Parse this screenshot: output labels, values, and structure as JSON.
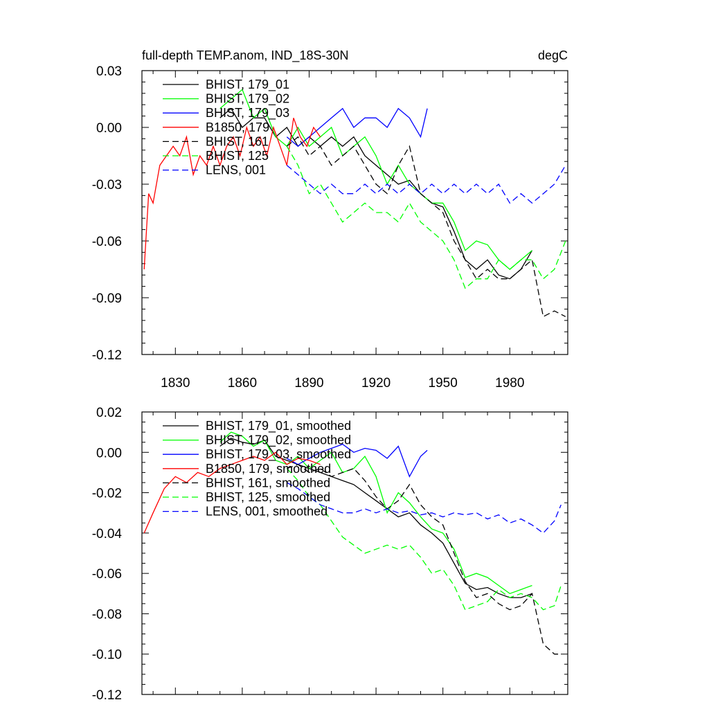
{
  "chart_data": [
    {
      "type": "line",
      "title": "full-depth TEMP.anom, IND_18S-30N",
      "units": "degC",
      "xlabel": "",
      "ylabel": "",
      "xlim": [
        1815,
        2006
      ],
      "ylim": [
        -0.12,
        0.03
      ],
      "xticks": [
        1830,
        1860,
        1890,
        1920,
        1950,
        1980
      ],
      "xtick_labels": [
        "1830",
        "1860",
        "1890",
        "1920",
        "1950",
        "1980"
      ],
      "yticks": [
        0.03,
        0.0,
        -0.03,
        -0.06,
        -0.09,
        -0.12
      ],
      "ytick_labels": [
        "0.03",
        "0.00",
        "-0.03",
        "-0.06",
        "-0.09",
        "-0.12"
      ],
      "legend_position": "top-left",
      "series": [
        {
          "name": "BHIST, 179_01",
          "color": "#000000",
          "dash": "solid",
          "x": [
            1850,
            1855,
            1860,
            1865,
            1870,
            1875,
            1880,
            1885,
            1890,
            1895,
            1900,
            1905,
            1910,
            1915,
            1920,
            1925,
            1930,
            1935,
            1940,
            1945,
            1950,
            1955,
            1960,
            1965,
            1970,
            1975,
            1980,
            1985,
            1990
          ],
          "y": [
            0.005,
            0.01,
            0.0,
            0.005,
            0.005,
            -0.005,
            0.0,
            -0.01,
            -0.005,
            -0.01,
            -0.005,
            -0.01,
            -0.005,
            -0.015,
            -0.02,
            -0.025,
            -0.03,
            -0.028,
            -0.035,
            -0.04,
            -0.042,
            -0.055,
            -0.07,
            -0.075,
            -0.07,
            -0.078,
            -0.08,
            -0.075,
            -0.065
          ]
        },
        {
          "name": "BHIST, 179_02",
          "color": "#00ff00",
          "dash": "solid",
          "x": [
            1850,
            1855,
            1860,
            1865,
            1870,
            1875,
            1880,
            1885,
            1890,
            1895,
            1900,
            1905,
            1910,
            1915,
            1920,
            1925,
            1930,
            1935,
            1940,
            1945,
            1950,
            1955,
            1960,
            1965,
            1970,
            1975,
            1980,
            1985,
            1990
          ],
          "y": [
            0.01,
            0.015,
            0.02,
            0.005,
            0.01,
            -0.005,
            -0.01,
            0.0,
            -0.01,
            -0.005,
            0.0,
            -0.015,
            -0.01,
            -0.005,
            -0.015,
            -0.03,
            -0.02,
            -0.03,
            -0.035,
            -0.04,
            -0.04,
            -0.05,
            -0.065,
            -0.06,
            -0.062,
            -0.07,
            -0.075,
            -0.07,
            -0.065
          ]
        },
        {
          "name": "BHIST, 179_03",
          "color": "#0000ff",
          "dash": "solid",
          "x": [
            1880,
            1885,
            1890,
            1895,
            1900,
            1905,
            1910,
            1915,
            1920,
            1925,
            1930,
            1935,
            1940,
            1943
          ],
          "y": [
            -0.005,
            -0.01,
            -0.005,
            0.0,
            0.005,
            0.01,
            0.0,
            0.005,
            0.005,
            0.0,
            0.01,
            0.005,
            -0.005,
            0.01
          ]
        },
        {
          "name": "B1850, 179",
          "color": "#ff0000",
          "dash": "solid",
          "x": [
            1816,
            1818,
            1820,
            1823,
            1826,
            1829,
            1832,
            1835,
            1838,
            1841,
            1844,
            1847,
            1850,
            1853,
            1856,
            1859,
            1862,
            1865,
            1868,
            1871,
            1874,
            1877,
            1880,
            1883,
            1886,
            1889,
            1892,
            1895
          ],
          "y": [
            -0.075,
            -0.035,
            -0.04,
            -0.02,
            -0.015,
            -0.01,
            -0.015,
            -0.005,
            -0.025,
            -0.015,
            -0.02,
            -0.01,
            -0.02,
            -0.01,
            -0.005,
            -0.015,
            0.0,
            -0.01,
            -0.005,
            -0.015,
            0.0,
            -0.01,
            -0.02,
            0.005,
            -0.005,
            -0.01,
            0.0,
            -0.005
          ]
        },
        {
          "name": "BHIST, 161",
          "color": "#000000",
          "dash": "dashed",
          "x": [
            1880,
            1885,
            1890,
            1895,
            1900,
            1905,
            1910,
            1915,
            1920,
            1925,
            1930,
            1935,
            1940,
            1945,
            1950,
            1955,
            1960,
            1965,
            1970,
            1975,
            1980,
            1985,
            1990,
            1995,
            2000,
            2005
          ],
          "y": [
            -0.01,
            -0.005,
            -0.015,
            -0.01,
            -0.02,
            -0.015,
            -0.01,
            -0.02,
            -0.03,
            -0.035,
            -0.02,
            -0.01,
            -0.035,
            -0.04,
            -0.045,
            -0.06,
            -0.07,
            -0.08,
            -0.075,
            -0.08,
            -0.08,
            -0.075,
            -0.07,
            -0.1,
            -0.097,
            -0.1
          ]
        },
        {
          "name": "BHIST, 125",
          "color": "#00ff00",
          "dash": "dashed",
          "x": [
            1880,
            1885,
            1890,
            1895,
            1900,
            1905,
            1910,
            1915,
            1920,
            1925,
            1930,
            1935,
            1940,
            1945,
            1950,
            1955,
            1960,
            1965,
            1970,
            1975,
            1980,
            1985,
            1990,
            1995,
            2000,
            2005
          ],
          "y": [
            -0.01,
            -0.02,
            -0.035,
            -0.03,
            -0.04,
            -0.05,
            -0.045,
            -0.04,
            -0.045,
            -0.045,
            -0.05,
            -0.04,
            -0.05,
            -0.055,
            -0.06,
            -0.07,
            -0.085,
            -0.08,
            -0.08,
            -0.07,
            -0.075,
            -0.07,
            -0.07,
            -0.08,
            -0.075,
            -0.06
          ]
        },
        {
          "name": "LENS, 001",
          "color": "#0000ff",
          "dash": "dashed",
          "x": [
            1880,
            1885,
            1890,
            1895,
            1900,
            1905,
            1910,
            1915,
            1920,
            1925,
            1930,
            1935,
            1940,
            1945,
            1950,
            1955,
            1960,
            1965,
            1970,
            1975,
            1980,
            1985,
            1990,
            1995,
            2000,
            2005
          ],
          "y": [
            -0.02,
            -0.025,
            -0.03,
            -0.035,
            -0.03,
            -0.035,
            -0.035,
            -0.03,
            -0.035,
            -0.03,
            -0.035,
            -0.03,
            -0.035,
            -0.03,
            -0.035,
            -0.03,
            -0.035,
            -0.03,
            -0.035,
            -0.03,
            -0.04,
            -0.035,
            -0.04,
            -0.035,
            -0.03,
            -0.02
          ]
        }
      ]
    },
    {
      "type": "line",
      "title": "",
      "xlabel": "",
      "ylabel": "",
      "xlim": [
        1815,
        2006
      ],
      "ylim": [
        -0.12,
        0.02
      ],
      "xticks": [
        1830,
        1860,
        1890,
        1920,
        1950,
        1980
      ],
      "yticks": [
        0.02,
        0.0,
        -0.02,
        -0.04,
        -0.06,
        -0.08,
        -0.1,
        -0.12
      ],
      "ytick_labels": [
        "0.02",
        "0.00",
        "-0.02",
        "-0.04",
        "-0.06",
        "-0.08",
        "-0.10",
        "-0.12"
      ],
      "legend_position": "top-left",
      "series": [
        {
          "name": "BHIST, 179_01, smoothed",
          "color": "#000000",
          "dash": "solid",
          "x": [
            1850,
            1855,
            1860,
            1865,
            1870,
            1875,
            1880,
            1885,
            1890,
            1895,
            1900,
            1905,
            1910,
            1915,
            1920,
            1925,
            1930,
            1935,
            1940,
            1945,
            1950,
            1955,
            1960,
            1965,
            1970,
            1975,
            1980,
            1985,
            1990
          ],
          "y": [
            0.003,
            0.007,
            0.005,
            0.004,
            0.006,
            -0.002,
            -0.004,
            -0.006,
            -0.008,
            -0.01,
            -0.012,
            -0.014,
            -0.016,
            -0.02,
            -0.024,
            -0.028,
            -0.032,
            -0.03,
            -0.036,
            -0.04,
            -0.045,
            -0.055,
            -0.065,
            -0.068,
            -0.067,
            -0.07,
            -0.072,
            -0.072,
            -0.07
          ]
        },
        {
          "name": "BHIST, 179_02, smoothed",
          "color": "#00ff00",
          "dash": "solid",
          "x": [
            1850,
            1855,
            1860,
            1865,
            1870,
            1875,
            1880,
            1885,
            1890,
            1895,
            1900,
            1905,
            1910,
            1915,
            1920,
            1925,
            1930,
            1935,
            1940,
            1945,
            1950,
            1955,
            1960,
            1965,
            1970,
            1975,
            1980,
            1985,
            1990
          ],
          "y": [
            0.005,
            0.01,
            0.008,
            0.003,
            0.006,
            -0.004,
            -0.006,
            -0.002,
            -0.008,
            -0.004,
            0.0,
            -0.01,
            -0.008,
            -0.002,
            -0.012,
            -0.03,
            -0.02,
            -0.025,
            -0.032,
            -0.038,
            -0.04,
            -0.048,
            -0.062,
            -0.06,
            -0.062,
            -0.066,
            -0.07,
            -0.068,
            -0.066
          ]
        },
        {
          "name": "BHIST, 179_03, smoothed",
          "color": "#0000ff",
          "dash": "solid",
          "x": [
            1880,
            1885,
            1890,
            1895,
            1900,
            1905,
            1910,
            1915,
            1920,
            1925,
            1930,
            1935,
            1940,
            1943
          ],
          "y": [
            -0.003,
            -0.006,
            -0.003,
            0.0,
            0.002,
            0.004,
            0.0,
            0.002,
            0.001,
            -0.003,
            0.003,
            -0.012,
            -0.002,
            0.001
          ]
        },
        {
          "name": "B1850, 179, smoothed",
          "color": "#ff0000",
          "dash": "solid",
          "x": [
            1816,
            1820,
            1825,
            1830,
            1835,
            1840,
            1845,
            1850,
            1855,
            1860,
            1865,
            1870,
            1875,
            1880,
            1885,
            1890,
            1895
          ],
          "y": [
            -0.04,
            -0.03,
            -0.018,
            -0.012,
            -0.015,
            -0.01,
            -0.012,
            -0.008,
            -0.006,
            -0.004,
            -0.002,
            -0.004,
            0.0,
            -0.006,
            -0.003,
            -0.004,
            -0.006
          ]
        },
        {
          "name": "BHIST, 161, smoothed",
          "color": "#000000",
          "dash": "dashed",
          "x": [
            1880,
            1885,
            1890,
            1895,
            1900,
            1905,
            1910,
            1915,
            1920,
            1925,
            1930,
            1935,
            1940,
            1945,
            1950,
            1955,
            1960,
            1965,
            1970,
            1975,
            1980,
            1985,
            1990,
            1995,
            2000,
            2003
          ],
          "y": [
            -0.008,
            -0.006,
            -0.01,
            -0.008,
            -0.012,
            -0.01,
            -0.008,
            -0.014,
            -0.022,
            -0.028,
            -0.024,
            -0.016,
            -0.026,
            -0.032,
            -0.036,
            -0.05,
            -0.064,
            -0.072,
            -0.07,
            -0.075,
            -0.078,
            -0.076,
            -0.07,
            -0.095,
            -0.1,
            -0.1
          ]
        },
        {
          "name": "BHIST, 125, smoothed",
          "color": "#00ff00",
          "dash": "dashed",
          "x": [
            1880,
            1885,
            1890,
            1895,
            1900,
            1905,
            1910,
            1915,
            1920,
            1925,
            1930,
            1935,
            1940,
            1945,
            1950,
            1955,
            1960,
            1965,
            1970,
            1975,
            1980,
            1985,
            1990,
            1995,
            2000,
            2003
          ],
          "y": [
            -0.008,
            -0.014,
            -0.022,
            -0.026,
            -0.034,
            -0.042,
            -0.046,
            -0.05,
            -0.048,
            -0.046,
            -0.048,
            -0.046,
            -0.052,
            -0.06,
            -0.058,
            -0.066,
            -0.078,
            -0.076,
            -0.074,
            -0.068,
            -0.072,
            -0.07,
            -0.072,
            -0.078,
            -0.076,
            -0.066
          ]
        },
        {
          "name": "LENS, 001, smoothed",
          "color": "#0000ff",
          "dash": "dashed",
          "x": [
            1880,
            1885,
            1890,
            1895,
            1900,
            1905,
            1910,
            1915,
            1920,
            1925,
            1930,
            1935,
            1940,
            1945,
            1950,
            1955,
            1960,
            1965,
            1970,
            1975,
            1980,
            1985,
            1990,
            1995,
            2000,
            2003
          ],
          "y": [
            -0.015,
            -0.018,
            -0.022,
            -0.026,
            -0.028,
            -0.03,
            -0.03,
            -0.028,
            -0.03,
            -0.028,
            -0.03,
            -0.029,
            -0.031,
            -0.03,
            -0.032,
            -0.03,
            -0.031,
            -0.03,
            -0.033,
            -0.031,
            -0.035,
            -0.033,
            -0.036,
            -0.04,
            -0.034,
            -0.026
          ]
        }
      ]
    }
  ]
}
